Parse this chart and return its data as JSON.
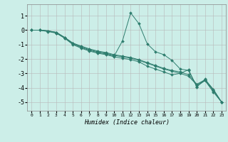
{
  "xlabel": "Humidex (Indice chaleur)",
  "background_color": "#cceee8",
  "line_color": "#2e7d6e",
  "xlim": [
    -0.5,
    23.5
  ],
  "ylim": [
    -5.6,
    1.8
  ],
  "yticks": [
    1,
    0,
    -1,
    -2,
    -3,
    -4,
    -5
  ],
  "xticks": [
    0,
    1,
    2,
    3,
    4,
    5,
    6,
    7,
    8,
    9,
    10,
    11,
    12,
    13,
    14,
    15,
    16,
    17,
    18,
    19,
    20,
    21,
    22,
    23
  ],
  "series": [
    [
      0.0,
      0.0,
      -0.05,
      -0.15,
      -0.5,
      -0.9,
      -1.15,
      -1.35,
      -1.5,
      -1.6,
      -1.75,
      -1.85,
      -1.95,
      -2.1,
      -2.3,
      -2.5,
      -2.7,
      -2.85,
      -3.0,
      -3.2,
      -3.8,
      -3.5,
      -4.2,
      -5.0
    ],
    [
      0.0,
      0.0,
      -0.05,
      -0.2,
      -0.55,
      -0.95,
      -1.2,
      -1.4,
      -1.55,
      -1.65,
      -1.8,
      -0.75,
      1.2,
      0.45,
      -0.95,
      -1.5,
      -1.7,
      -2.1,
      -2.7,
      -2.8,
      -3.9,
      -3.5,
      -4.3,
      -5.0
    ],
    [
      0.0,
      0.0,
      -0.1,
      -0.2,
      -0.55,
      -1.0,
      -1.25,
      -1.45,
      -1.6,
      -1.7,
      -1.85,
      -1.95,
      -2.05,
      -2.2,
      -2.5,
      -2.7,
      -2.9,
      -3.1,
      -3.0,
      -2.75,
      -3.95,
      -3.4,
      -4.15,
      -5.0
    ],
    [
      0.0,
      0.0,
      -0.05,
      -0.15,
      -0.5,
      -0.9,
      -1.1,
      -1.3,
      -1.45,
      -1.55,
      -1.7,
      -1.8,
      -1.9,
      -2.05,
      -2.25,
      -2.45,
      -2.65,
      -2.8,
      -2.9,
      -3.1,
      -3.75,
      -3.45,
      -4.1,
      -5.0
    ]
  ]
}
